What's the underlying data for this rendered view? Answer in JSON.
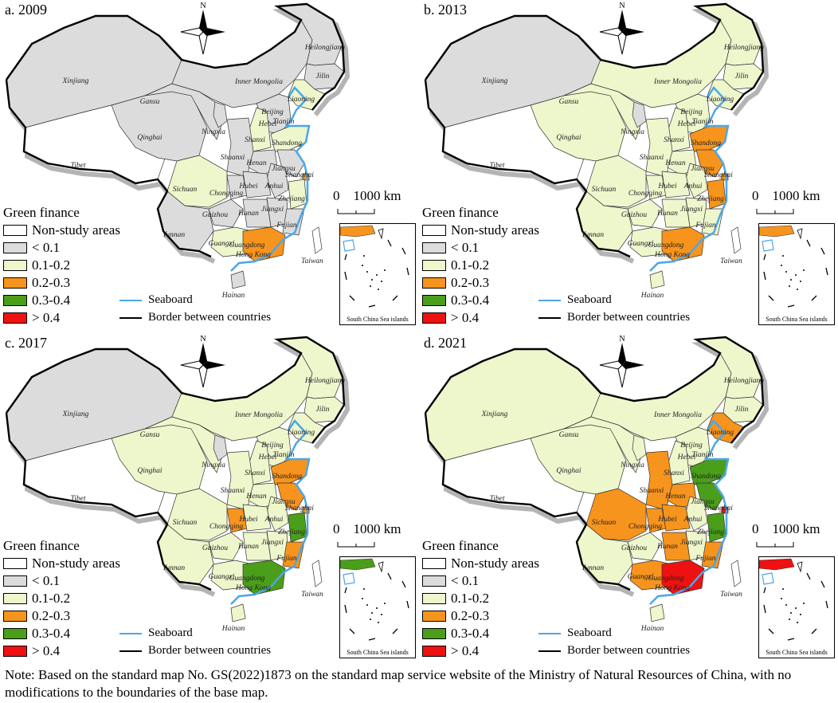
{
  "legend": {
    "title": "Green finance",
    "items": [
      {
        "label": "Non-study areas",
        "color": "#ffffff"
      },
      {
        "label": "< 0.1",
        "color": "#dcdcdc"
      },
      {
        "label": "0.1-0.2",
        "color": "#eef6cc"
      },
      {
        "label": "0.2-0.3",
        "color": "#f7941d"
      },
      {
        "label": "0.3-0.4",
        "color": "#4a9e1a"
      },
      {
        "label": "> 0.4",
        "color": "#ee1111"
      }
    ],
    "seaboard": "Seaboard",
    "border": "Border between countries",
    "seaboard_color": "#4da6e8"
  },
  "compass_label": "N",
  "scale_label": "0    1000 km",
  "inset_label": "South China Sea islands",
  "note": "Note: Based on the standard map No. GS(2022)1873 on the standard map service website of the Ministry of Natural Resources of China, with no modifications to the boundaries of the base map.",
  "panels": [
    {
      "title": "a. 2009",
      "regions": {
        "xinjiang": 1,
        "tibet": 0,
        "qinghai": 1,
        "gansu": 1,
        "innermongolia": 1,
        "heilongjiang": 1,
        "jilin": 1,
        "liaoning": 2,
        "beijing": 4,
        "tianjin": 1,
        "hebei": 1,
        "shanxi": 2,
        "shandong": 2,
        "ningxia": 1,
        "shaanxi": 1,
        "henan": 1,
        "jiangsu": 1,
        "anhui": 1,
        "shanghai": 3,
        "sichuan": 2,
        "chongqing": 1,
        "hubei": 1,
        "zhejiang": 2,
        "jiangxi": 1,
        "fujian": 1,
        "guizhou": 1,
        "hunan": 1,
        "yunnan": 1,
        "guangxi": 2,
        "guangdong": 3,
        "hainan": 1,
        "taiwan": 0
      }
    },
    {
      "title": "b. 2013",
      "regions": {
        "xinjiang": 1,
        "tibet": 0,
        "qinghai": 2,
        "gansu": 2,
        "innermongolia": 2,
        "heilongjiang": 2,
        "jilin": 2,
        "liaoning": 2,
        "beijing": 5,
        "tianjin": 2,
        "hebei": 2,
        "shanxi": 2,
        "shandong": 3,
        "ningxia": 1,
        "shaanxi": 2,
        "henan": 2,
        "jiangsu": 3,
        "anhui": 2,
        "shanghai": 3,
        "sichuan": 2,
        "chongqing": 2,
        "hubei": 2,
        "zhejiang": 3,
        "jiangxi": 2,
        "fujian": 2,
        "guizhou": 2,
        "hunan": 2,
        "yunnan": 2,
        "guangxi": 2,
        "guangdong": 3,
        "hainan": 2,
        "taiwan": 0
      }
    },
    {
      "title": "c. 2017",
      "regions": {
        "xinjiang": 1,
        "tibet": 0,
        "qinghai": 2,
        "gansu": 2,
        "innermongolia": 2,
        "heilongjiang": 2,
        "jilin": 2,
        "liaoning": 2,
        "beijing": 5,
        "tianjin": 2,
        "hebei": 2,
        "shanxi": 2,
        "shandong": 3,
        "ningxia": 1,
        "shaanxi": 2,
        "henan": 2,
        "jiangsu": 3,
        "anhui": 2,
        "shanghai": 3,
        "sichuan": 2,
        "chongqing": 3,
        "hubei": 2,
        "zhejiang": 4,
        "jiangxi": 2,
        "fujian": 3,
        "guizhou": 2,
        "hunan": 2,
        "yunnan": 2,
        "guangxi": 2,
        "guangdong": 4,
        "hainan": 2,
        "taiwan": 0
      }
    },
    {
      "title": "d. 2021",
      "regions": {
        "xinjiang": 2,
        "tibet": 0,
        "qinghai": 2,
        "gansu": 2,
        "innermongolia": 2,
        "heilongjiang": 2,
        "jilin": 2,
        "liaoning": 3,
        "beijing": 5,
        "tianjin": 4,
        "hebei": 2,
        "shanxi": 2,
        "shandong": 4,
        "ningxia": 2,
        "shaanxi": 3,
        "henan": 3,
        "jiangsu": 4,
        "anhui": 2,
        "shanghai": 5,
        "sichuan": 3,
        "chongqing": 3,
        "hubei": 3,
        "zhejiang": 4,
        "jiangxi": 2,
        "fujian": 3,
        "guizhou": 2,
        "hunan": 3,
        "yunnan": 2,
        "guangxi": 3,
        "guangdong": 5,
        "hainan": 2,
        "taiwan": 0
      }
    }
  ],
  "region_names": {
    "xinjiang": "Xinjiang",
    "tibet": "Tibet",
    "qinghai": "Qinghai",
    "gansu": "Gansu",
    "innermongolia": "Inner Mongolia",
    "heilongjiang": "Heilongjiang",
    "jilin": "Jilin",
    "liaoning": "Liaoning",
    "beijing": "Beijing",
    "tianjin": "Tianjin",
    "hebei": "Hebei",
    "shanxi": "Shanxi",
    "shandong": "Shandong",
    "ningxia": "Ningxia",
    "shaanxi": "Shaanxi",
    "henan": "Henan",
    "jiangsu": "Jiangsu",
    "anhui": "Anhui",
    "shanghai": "Shanghai",
    "sichuan": "Sichuan",
    "chongqing": "Chongqing",
    "hubei": "Hubei",
    "zhejiang": "Zhejiang",
    "jiangxi": "Jiangxi",
    "fujian": "Fujian",
    "guizhou": "Guizhou",
    "hunan": "Hunan",
    "yunnan": "Yunnan",
    "guangxi": "Guangxi",
    "guangdong": "Guangdong",
    "hainan": "Hainan",
    "taiwan": "Taiwan",
    "hongkong": "Hong Kong"
  }
}
